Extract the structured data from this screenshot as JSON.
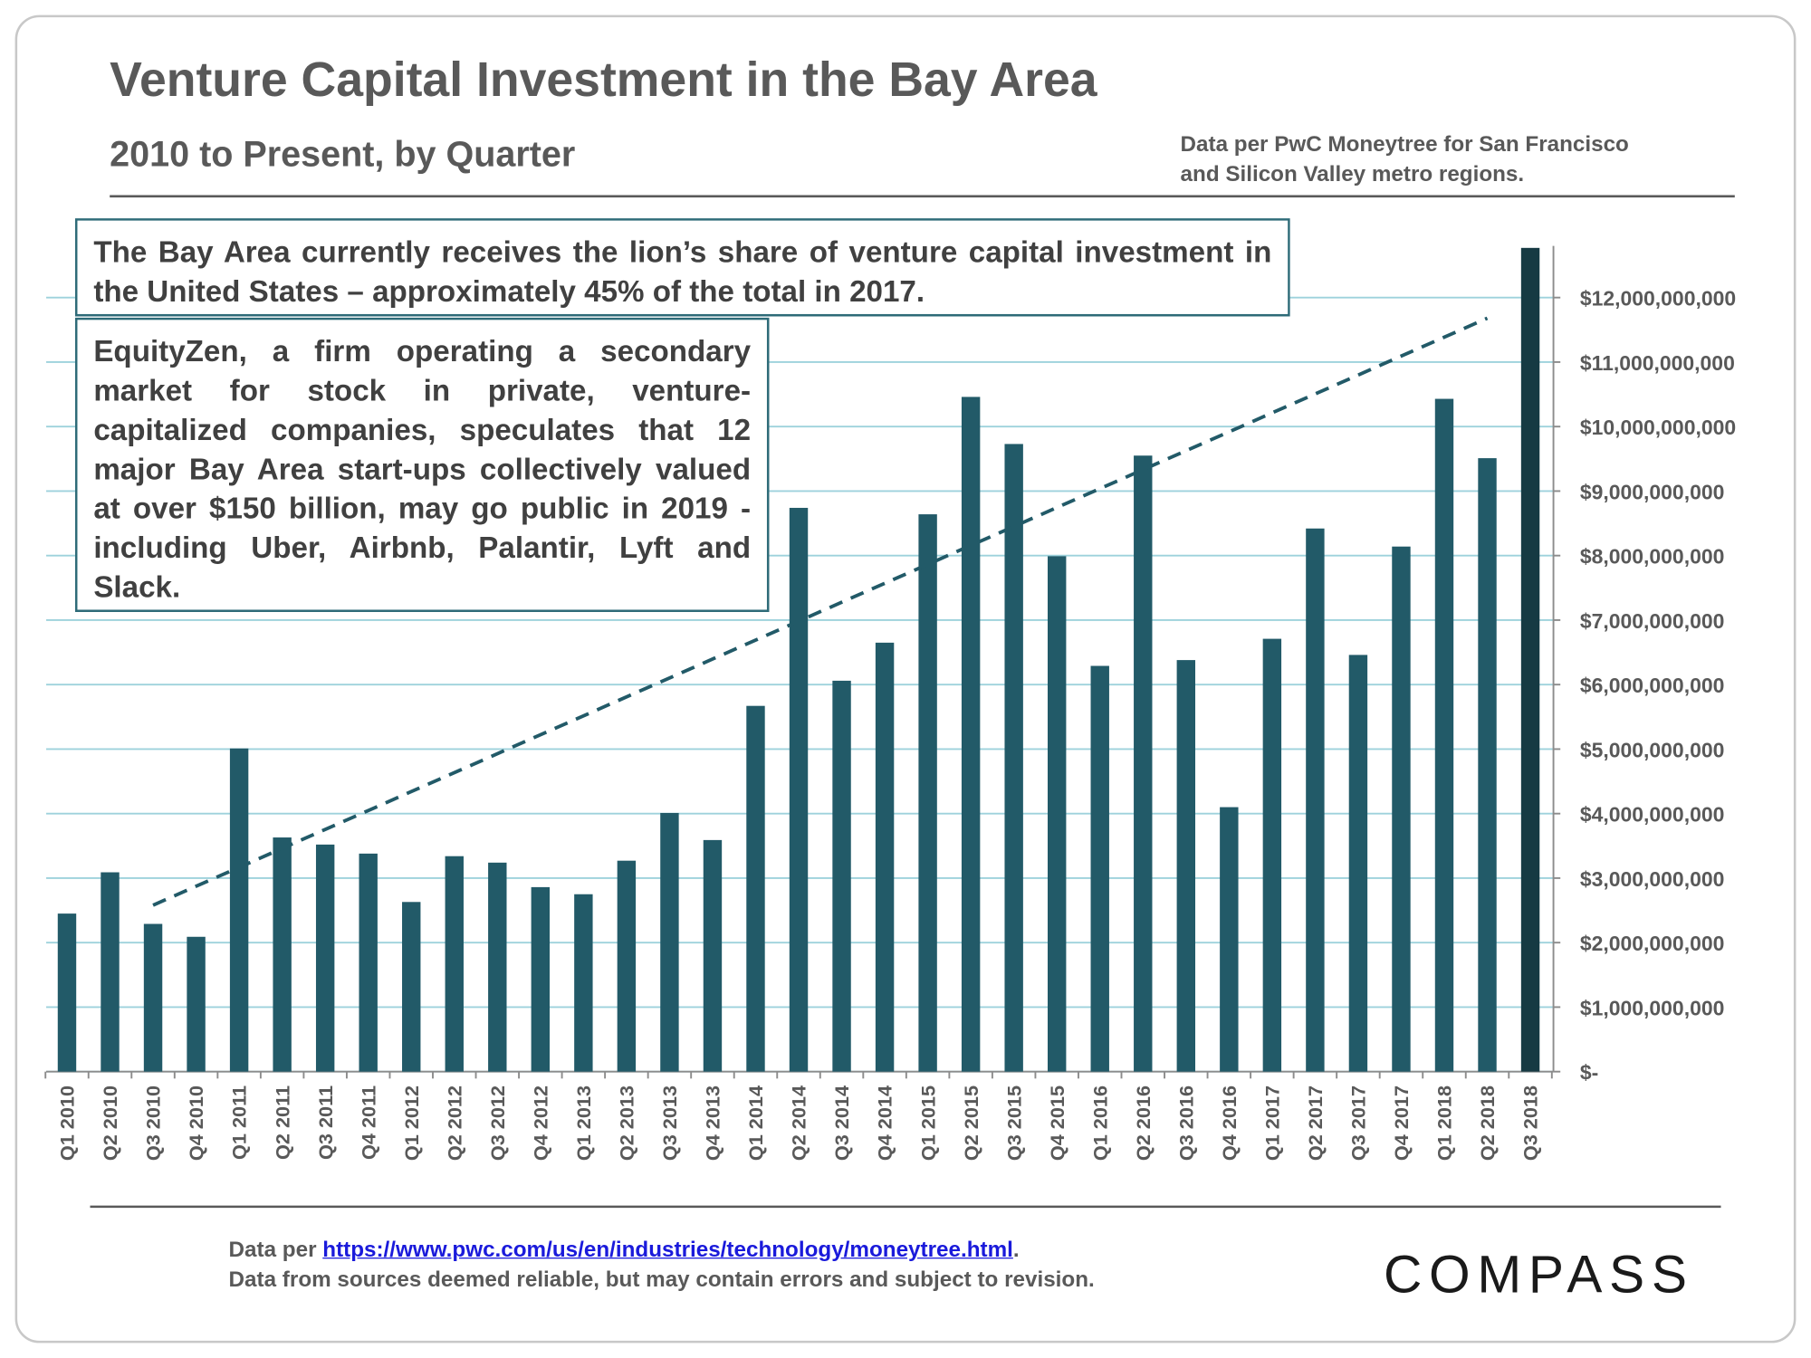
{
  "chart_data": {
    "type": "bar",
    "title": "Venture Capital Investment in the Bay Area",
    "subtitle": "2010 to Present, by Quarter",
    "source_note": [
      "Data per PwC Moneytree for San Francisco",
      "and Silicon Valley metro regions."
    ],
    "annotations": [
      "The Bay Area currently receives the lion’s share of venture capital investment in the United States – approximately 45% of the total in 2017.",
      "EquityZen, a firm operating a secondary market for stock in private, venture-capitalized companies, speculates that 12 major Bay Area start-ups collectively valued at over $150 billion, may go public in 2019 - including Uber, Airbnb, Palantir, Lyft and Slack."
    ],
    "categories": [
      "Q1 2010",
      "Q2 2010",
      "Q3 2010",
      "Q4 2010",
      "Q1 2011",
      "Q2 2011",
      "Q3 2011",
      "Q4 2011",
      "Q1 2012",
      "Q2 2012",
      "Q3 2012",
      "Q4 2012",
      "Q1 2013",
      "Q2 2013",
      "Q3 2013",
      "Q4 2013",
      "Q1 2014",
      "Q2 2014",
      "Q3 2014",
      "Q4 2014",
      "Q1 2015",
      "Q2 2015",
      "Q3 2015",
      "Q4 2015",
      "Q1 2016",
      "Q2 2016",
      "Q3 2016",
      "Q4 2016",
      "Q1 2017",
      "Q2 2017",
      "Q3 2017",
      "Q4 2017",
      "Q1 2018",
      "Q2 2018",
      "Q3 2018"
    ],
    "values": [
      2450000000,
      3090000000,
      2290000000,
      2090000000,
      5010000000,
      3630000000,
      3520000000,
      3380000000,
      2630000000,
      3340000000,
      3240000000,
      2860000000,
      2750000000,
      3270000000,
      4010000000,
      3590000000,
      5670000000,
      8740000000,
      6060000000,
      6650000000,
      8640000000,
      10460000000,
      9730000000,
      7990000000,
      6290000000,
      9550000000,
      6380000000,
      4100000000,
      6710000000,
      8420000000,
      6460000000,
      8140000000,
      10430000000,
      9510000000,
      12770000000
    ],
    "color": "#225a68",
    "last_color": "#163a43",
    "trendline": {
      "categories": [
        "Q3 2010",
        "Q2 2018"
      ],
      "values": [
        2580000000,
        11680000000
      ],
      "color": "#225a68"
    },
    "ylim": [
      0,
      12800000000
    ],
    "yticks": [
      {
        "value": 0,
        "label": "$-"
      },
      {
        "value": 1000000000,
        "label": "$1,000,000,000"
      },
      {
        "value": 2000000000,
        "label": "$2,000,000,000"
      },
      {
        "value": 3000000000,
        "label": "$3,000,000,000"
      },
      {
        "value": 4000000000,
        "label": "$4,000,000,000"
      },
      {
        "value": 5000000000,
        "label": "$5,000,000,000"
      },
      {
        "value": 6000000000,
        "label": "$6,000,000,000"
      },
      {
        "value": 7000000000,
        "label": "$7,000,000,000"
      },
      {
        "value": 8000000000,
        "label": "$8,000,000,000"
      },
      {
        "value": 9000000000,
        "label": "$9,000,000,000"
      },
      {
        "value": 10000000000,
        "label": "$10,000,000,000"
      },
      {
        "value": 11000000000,
        "label": "$11,000,000,000"
      },
      {
        "value": 12000000000,
        "label": "$12,000,000,000"
      }
    ],
    "grid": true,
    "grid_color": "#9ed2dc",
    "footer": {
      "prefix": "Data per",
      "link": "https://www.pwc.com/us/en/industries/technology/moneytree.html",
      "suffix": ".",
      "line2": "Data from sources deemed reliable, but may contain errors and subject to revision."
    },
    "brand": "COMPASS"
  }
}
